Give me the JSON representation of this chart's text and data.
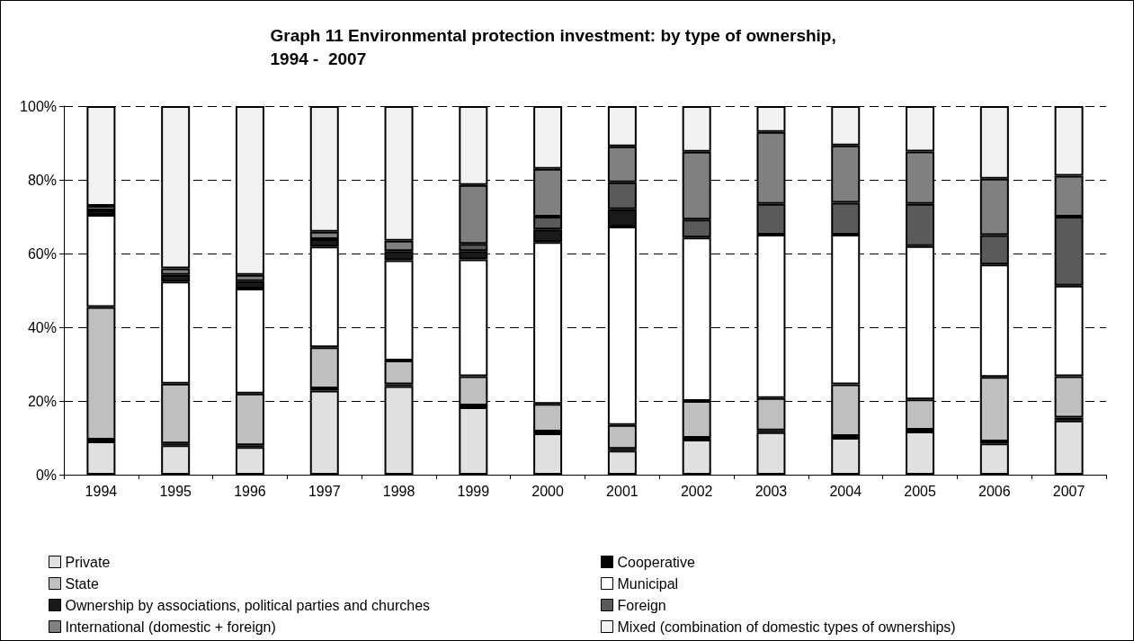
{
  "chart_data": {
    "type": "bar",
    "stacked": true,
    "title": "Graph 11 Environmental protection investment: by type of ownership, 1994 -  2007",
    "categories": [
      "1994",
      "1995",
      "1996",
      "1997",
      "1998",
      "1999",
      "2000",
      "2001",
      "2002",
      "2003",
      "2004",
      "2005",
      "2006",
      "2007"
    ],
    "ylim": [
      0,
      100
    ],
    "yticks": [
      {
        "value": 0,
        "label": "0%"
      },
      {
        "value": 20,
        "label": "20%"
      },
      {
        "value": 40,
        "label": "40%"
      },
      {
        "value": 60,
        "label": "60%"
      },
      {
        "value": 80,
        "label": "80%"
      },
      {
        "value": 100,
        "label": "100%"
      }
    ],
    "grid": "y",
    "legend": "bottom",
    "series": [
      {
        "name": "Private",
        "color": "#e0e0e0",
        "values": [
          9,
          8,
          7.5,
          22.8,
          24,
          18.3,
          11.2,
          6.5,
          9.5,
          11.5,
          10,
          11.7,
          8.5,
          14.7
        ]
      },
      {
        "name": "Cooperative",
        "color": "#000000",
        "values": [
          0.5,
          0.5,
          0.5,
          0.6,
          0.5,
          0.5,
          0.5,
          0.5,
          0.5,
          0.5,
          0.5,
          0.5,
          0.5,
          0.8
        ]
      },
      {
        "name": "State",
        "color": "#bfbfbf",
        "values": [
          36,
          16.2,
          14,
          11.2,
          6.5,
          7.9,
          7.5,
          6.5,
          10,
          8.8,
          14,
          8.2,
          17.5,
          11.2
        ]
      },
      {
        "name": "Municipal",
        "color": "#ffffff",
        "values": [
          25,
          27.7,
          28.5,
          27.3,
          27.2,
          31.7,
          43.9,
          53.8,
          44.3,
          44.3,
          40.6,
          41.6,
          30.5,
          24.6
        ]
      },
      {
        "name": "Ownership by associations, political parties and churches",
        "color": "#1a1a1a",
        "values": [
          1.2,
          1.8,
          2,
          2,
          2.5,
          2.3,
          3.4,
          4.7,
          0,
          0,
          0,
          0,
          0,
          0
        ]
      },
      {
        "name": "Foreign",
        "color": "#5a5a5a",
        "values": [
          0,
          0,
          0,
          0,
          0,
          1.9,
          3.5,
          7.3,
          4.9,
          8.4,
          8.7,
          11.5,
          8,
          18.7
        ]
      },
      {
        "name": "International (domestic + foreign)",
        "color": "#808080",
        "values": [
          1.2,
          1.8,
          1.7,
          2,
          2.8,
          16,
          13,
          9.8,
          18.4,
          19.5,
          15.5,
          14.2,
          15.3,
          11.1
        ]
      },
      {
        "name": "Mixed (combination of domestic types of ownerships)",
        "color": "#f2f2f2",
        "values": [
          27.1,
          44,
          45.8,
          34.1,
          36.5,
          21.4,
          17,
          10.9,
          12.4,
          7,
          10.7,
          12.3,
          19.7,
          18.9
        ]
      }
    ]
  }
}
